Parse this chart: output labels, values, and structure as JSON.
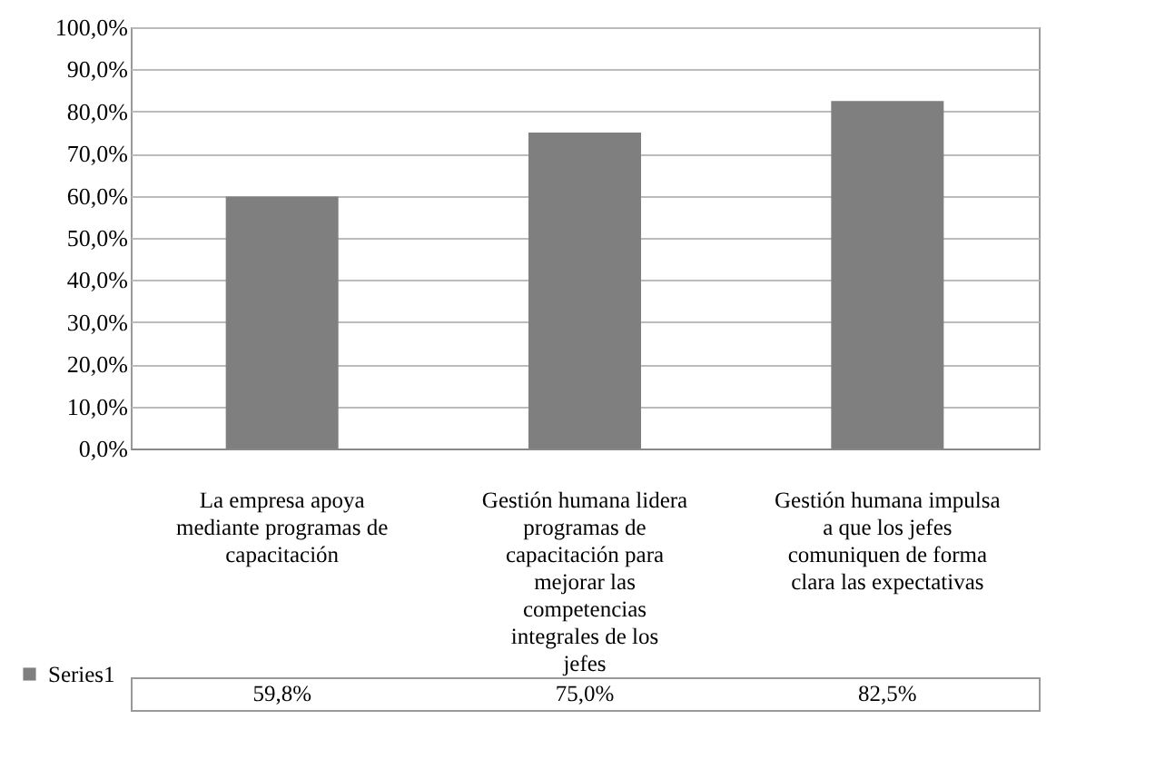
{
  "chart_data": {
    "type": "bar",
    "categories": [
      "La empresa apoya mediante programas de capacitación",
      "Gestión humana lidera programas de capacitación para mejorar las competencias integrales de los jefes",
      "Gestión humana impulsa a que los jefes comuniquen de forma clara las expectativas"
    ],
    "series": [
      {
        "name": "Series1",
        "color": "#7f7f7f",
        "values": [
          59.8,
          75.0,
          82.5
        ],
        "value_labels": [
          "59,8%",
          "75,0%",
          "82,5%"
        ]
      }
    ],
    "ylim": [
      0,
      100
    ],
    "yticks": [
      {
        "value": 0,
        "label": "0,0%"
      },
      {
        "value": 10,
        "label": "10,0%"
      },
      {
        "value": 20,
        "label": "20,0%"
      },
      {
        "value": 30,
        "label": "30,0%"
      },
      {
        "value": 40,
        "label": "40,0%"
      },
      {
        "value": 50,
        "label": "50,0%"
      },
      {
        "value": 60,
        "label": "60,0%"
      },
      {
        "value": 70,
        "label": "70,0%"
      },
      {
        "value": 80,
        "label": "80,0%"
      },
      {
        "value": 90,
        "label": "90,0%"
      },
      {
        "value": 100,
        "label": "100,0%"
      }
    ],
    "grid": "y",
    "legend": "bottom left"
  }
}
